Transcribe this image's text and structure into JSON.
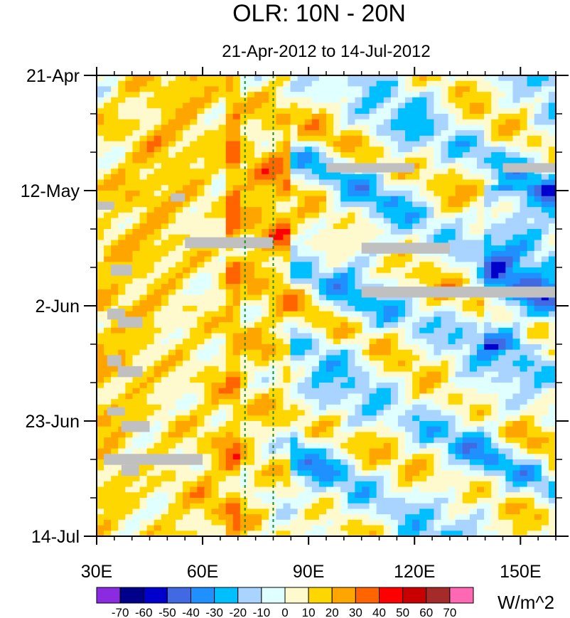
{
  "chart_data": {
    "type": "heatmap",
    "title": "OLR: 10N - 20N",
    "subtitle": "21-Apr-2012 to 14-Jul-2012",
    "x_axis": {
      "range": [
        30,
        160
      ],
      "ticks": [
        {
          "value": 30,
          "label": "30E"
        },
        {
          "value": 60,
          "label": "60E"
        },
        {
          "value": 90,
          "label": "90E"
        },
        {
          "value": 120,
          "label": "120E"
        },
        {
          "value": 150,
          "label": "150E"
        }
      ]
    },
    "y_axis": {
      "range_days": [
        0,
        84
      ],
      "ticks": [
        {
          "day": 0,
          "label": "21-Apr"
        },
        {
          "day": 21,
          "label": "12-May"
        },
        {
          "day": 42,
          "label": "2-Jun"
        },
        {
          "day": 63,
          "label": "23-Jun"
        },
        {
          "day": 84,
          "label": "14-Jul"
        }
      ],
      "orientation": "time increases downward"
    },
    "colorbar": {
      "unit": "W/m^2",
      "labels": [
        "-70",
        "-60",
        "-50",
        "-40",
        "-30",
        "-20",
        "-10",
        "0",
        "10",
        "20",
        "30",
        "40",
        "50",
        "60",
        "70"
      ],
      "colors": [
        "#8a2be2",
        "#00008b",
        "#0000cd",
        "#4169e1",
        "#1e90ff",
        "#00bfff",
        "#a9d4ff",
        "#e0ffff",
        "#fffacd",
        "#ffd700",
        "#ffa500",
        "#ff6400",
        "#ff0000",
        "#c80000",
        "#a52a2a",
        "#ff69b4"
      ]
    },
    "reference_lines": [
      {
        "lon": 72,
        "style": "dashed",
        "color": "#228b22"
      },
      {
        "lon": 80,
        "style": "dashed",
        "color": "#228b22"
      }
    ],
    "missing_data_color": "#c0c0c0"
  }
}
